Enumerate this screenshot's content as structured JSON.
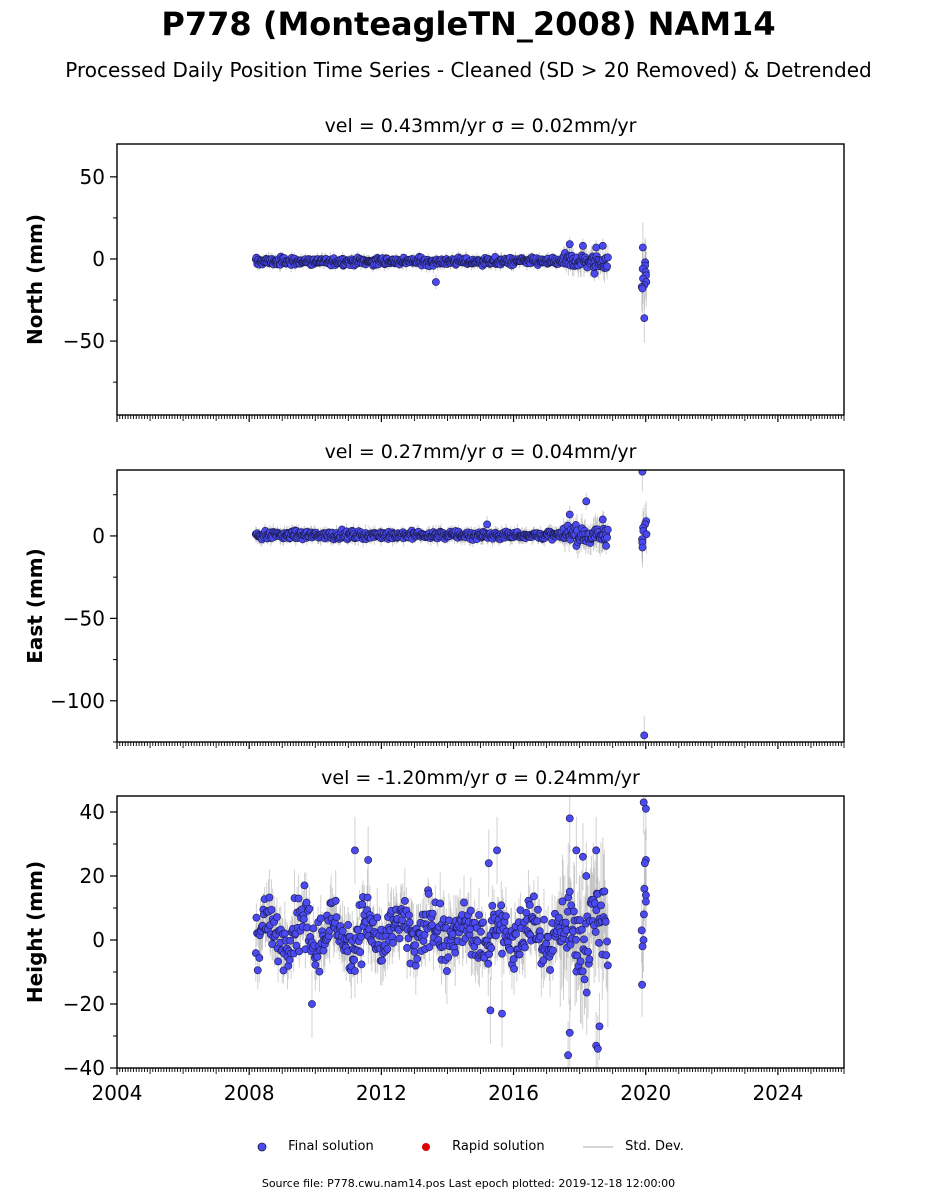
{
  "title": "P778 (MonteagleTN_2008) NAM14",
  "subtitle": "Processed Daily Position Time Series - Cleaned (SD > 20 Removed) & Detrended",
  "footer": "Source file: P778.cwu.nam14.pos  Last epoch plotted: 2019-12-18 12:00:00",
  "colors": {
    "final": "#4a4af0",
    "final_edge": "#1a1a4a",
    "rapid": "#e00000",
    "stddev": "#c8c8c8"
  },
  "legend": {
    "final": "Final solution",
    "rapid": "Rapid solution",
    "stddev": "Std. Dev."
  },
  "chart_data": [
    {
      "type": "scatter",
      "title": "vel = 0.43mm/yr   σ = 0.02mm/yr",
      "ylabel": "North (mm)",
      "xlim": [
        2004,
        2026
      ],
      "ylim": [
        -95,
        70
      ],
      "yticks": [
        50,
        0,
        -50
      ],
      "xticks": [
        2004,
        2008,
        2012,
        2016,
        2020,
        2024
      ],
      "show_x_tick_labels": false,
      "data_span": [
        2008.2,
        2018.85
      ],
      "baseline": -1.5,
      "scatter_amp": 2.5,
      "late_span_start": 2017.5,
      "late_amp": 5,
      "std_typ": 3,
      "outliers": [
        {
          "x": 2013.65,
          "y": -14
        },
        {
          "x": 2017.7,
          "y": 9
        },
        {
          "x": 2018.1,
          "y": 8
        },
        {
          "x": 2018.5,
          "y": 7
        },
        {
          "x": 2018.7,
          "y": 8
        },
        {
          "x": 2018.45,
          "y": -9
        }
      ],
      "late_cluster": {
        "x": 2019.95,
        "points": [
          7,
          -2,
          -4,
          -6,
          -8,
          -10,
          -12,
          -14,
          -16,
          -17,
          -18,
          -36
        ],
        "std": 15
      }
    },
    {
      "type": "scatter",
      "title": "vel = 0.27mm/yr   σ = 0.04mm/yr",
      "ylabel": "East (mm)",
      "xlim": [
        2004,
        2026
      ],
      "ylim": [
        -125,
        40
      ],
      "yticks": [
        0,
        -50,
        -100
      ],
      "xticks": [
        2004,
        2008,
        2012,
        2016,
        2020,
        2024
      ],
      "show_x_tick_labels": false,
      "data_span": [
        2008.2,
        2018.85
      ],
      "baseline": 0.5,
      "scatter_amp": 2.5,
      "late_span_start": 2017.5,
      "late_amp": 6,
      "std_typ": 3.5,
      "outliers": [
        {
          "x": 2015.2,
          "y": 7
        },
        {
          "x": 2017.7,
          "y": 13
        },
        {
          "x": 2018.2,
          "y": 21
        },
        {
          "x": 2018.7,
          "y": 10
        },
        {
          "x": 2018.8,
          "y": -6
        }
      ],
      "late_cluster": {
        "x": 2019.95,
        "points": [
          39,
          9,
          7,
          5,
          3,
          1,
          -2,
          -4,
          -7,
          -121
        ],
        "std": 12
      }
    },
    {
      "type": "scatter",
      "title": "vel = -1.20mm/yr   σ = 0.24mm/yr",
      "ylabel": "Height (mm)",
      "xlim": [
        2004,
        2026
      ],
      "ylim": [
        -40,
        45
      ],
      "yticks": [
        40,
        20,
        0,
        -20,
        -40
      ],
      "xticks": [
        2004,
        2008,
        2012,
        2016,
        2020,
        2024
      ],
      "show_x_tick_labels": true,
      "data_span": [
        2008.2,
        2018.85
      ],
      "baseline": 2,
      "scatter_amp": 9,
      "late_span_start": 2017.4,
      "late_amp": 14,
      "std_typ": 7,
      "outliers": [
        {
          "x": 2011.2,
          "y": 28
        },
        {
          "x": 2011.6,
          "y": 25
        },
        {
          "x": 2015.25,
          "y": 24
        },
        {
          "x": 2015.5,
          "y": 28
        },
        {
          "x": 2015.3,
          "y": -22
        },
        {
          "x": 2015.65,
          "y": -23
        },
        {
          "x": 2017.7,
          "y": 38
        },
        {
          "x": 2017.9,
          "y": 28
        },
        {
          "x": 2018.1,
          "y": 26
        },
        {
          "x": 2018.5,
          "y": 28
        },
        {
          "x": 2018.2,
          "y": 20
        },
        {
          "x": 2017.65,
          "y": -36
        },
        {
          "x": 2017.7,
          "y": -29
        },
        {
          "x": 2018.5,
          "y": -33
        },
        {
          "x": 2018.55,
          "y": -34
        },
        {
          "x": 2018.6,
          "y": -27
        },
        {
          "x": 2009.9,
          "y": -20
        }
      ],
      "late_cluster": {
        "x": 2019.95,
        "points": [
          43,
          41,
          25,
          24,
          16,
          14,
          12,
          8,
          3,
          0,
          -2,
          -14
        ],
        "std": 10
      }
    }
  ]
}
